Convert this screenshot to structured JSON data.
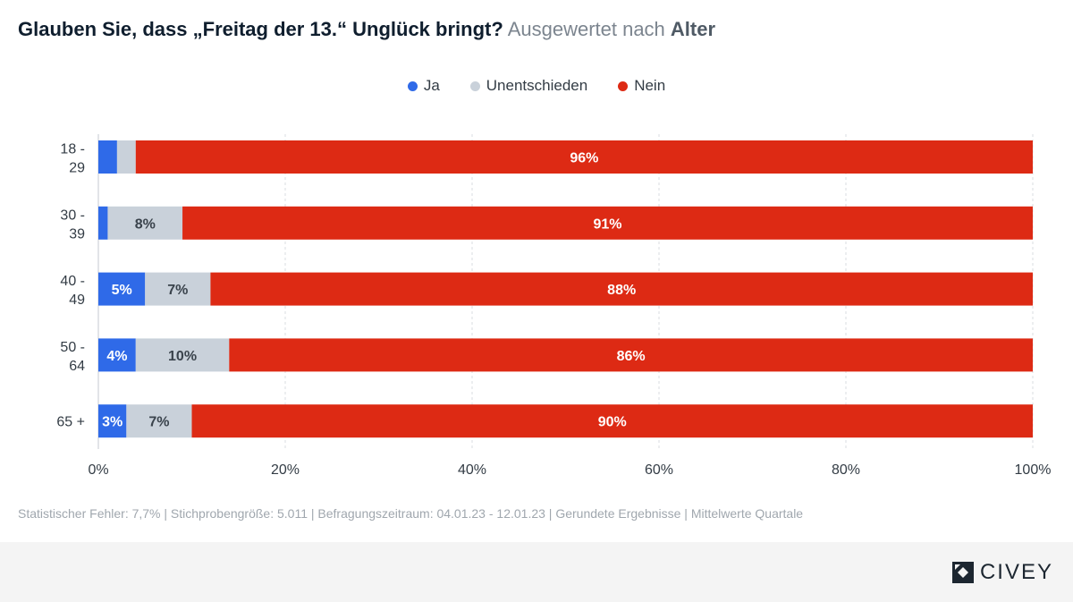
{
  "header": {
    "question": "Glauben Sie, dass „Freitag der 13.“ Unglück bringt?",
    "subtitle_prefix": "Ausgewertet nach",
    "subtitle_dimension": "Alter"
  },
  "colors": {
    "ja": "#2f6ae8",
    "unentschieden": "#c9d1da",
    "nein": "#dd2a14",
    "label_dark": "#3a434c",
    "label_light": "#ffffff",
    "grid": "#d9dde2"
  },
  "chart_data": {
    "type": "bar",
    "orientation": "horizontal",
    "stacked": true,
    "categories": [
      [
        "18 -",
        "29"
      ],
      [
        "30 -",
        "39"
      ],
      [
        "40 -",
        "49"
      ],
      [
        "50 -",
        "64"
      ],
      [
        "65 +"
      ]
    ],
    "series": [
      {
        "name": "Ja",
        "values": [
          2,
          1,
          5,
          4,
          3
        ],
        "labels": [
          "",
          "",
          "5%",
          "4%",
          "3%"
        ]
      },
      {
        "name": "Unentschieden",
        "values": [
          2,
          8,
          7,
          10,
          7
        ],
        "labels": [
          "",
          "8%",
          "7%",
          "10%",
          "7%"
        ]
      },
      {
        "name": "Nein",
        "values": [
          96,
          91,
          88,
          86,
          90
        ],
        "labels": [
          "96%",
          "91%",
          "88%",
          "86%",
          "90%"
        ]
      }
    ],
    "xlim": [
      0,
      100
    ],
    "xticks": [
      0,
      20,
      40,
      60,
      80,
      100
    ],
    "xtick_labels": [
      "0%",
      "20%",
      "40%",
      "60%",
      "80%",
      "100%"
    ],
    "grid": true,
    "legend_position": "top-center"
  },
  "footnote": "Statistischer Fehler: 7,7% | Stichprobengröße: 5.011 | Befragungszeitraum: 04.01.23 - 12.01.23 | Gerundete Ergebnisse | Mittelwerte Quartale",
  "brand": {
    "name": "CIVEY",
    "logo": "civey-logo-icon"
  }
}
